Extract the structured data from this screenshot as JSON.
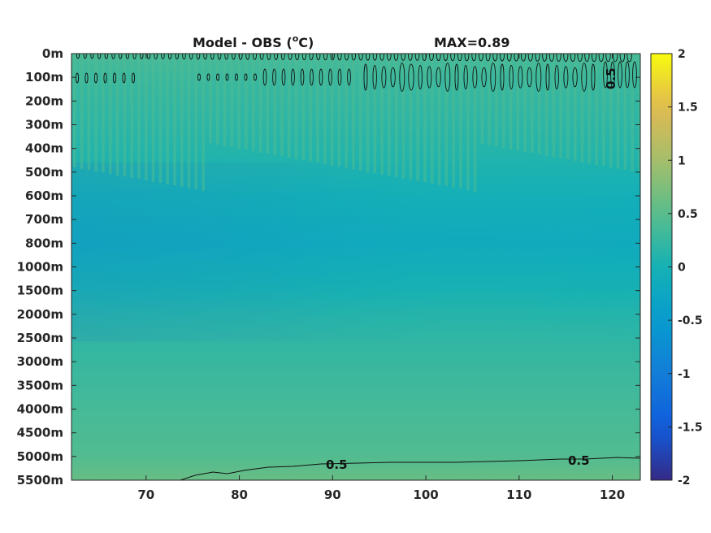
{
  "chart_data": {
    "type": "heatmap",
    "title_left": "Model - OBS (",
    "title_unit_sup": "o",
    "title_unit_rest": "C)",
    "title_right": "MAX=0.89",
    "xlabel": "",
    "ylabel": "",
    "x_ticks": [
      "70",
      "80",
      "90",
      "100",
      "110",
      "120"
    ],
    "x_tick_values": [
      70,
      80,
      90,
      100,
      110,
      120
    ],
    "xlim": [
      62,
      123
    ],
    "y_ticks": [
      "0m",
      "100m",
      "200m",
      "300m",
      "400m",
      "500m",
      "600m",
      "700m",
      "800m",
      "1000m",
      "1500m",
      "2000m",
      "2500m",
      "3000m",
      "3500m",
      "4000m",
      "4500m",
      "5000m",
      "5500m"
    ],
    "colorbar": {
      "min": -2,
      "max": 2,
      "ticks": [
        "2",
        "1.5",
        "1",
        "0.5",
        "0",
        "-0.5",
        "-1",
        "-1.5",
        "-2"
      ],
      "tick_values": [
        2,
        1.5,
        1,
        0.5,
        0,
        -0.5,
        -1,
        -1.5,
        -2
      ],
      "colormap": "parula"
    },
    "depth_profile_values": [
      0.38,
      0.28,
      0.22,
      0.18,
      0.12,
      0.05,
      -0.05,
      -0.12,
      -0.16,
      -0.08,
      0.02,
      0.12,
      0.2,
      0.26,
      0.3,
      0.36,
      0.4,
      0.45,
      0.6
    ],
    "contour_level": 0.5,
    "contour_labels": [
      "0.5",
      "0.5"
    ],
    "corner_contour_label": "0.5"
  }
}
